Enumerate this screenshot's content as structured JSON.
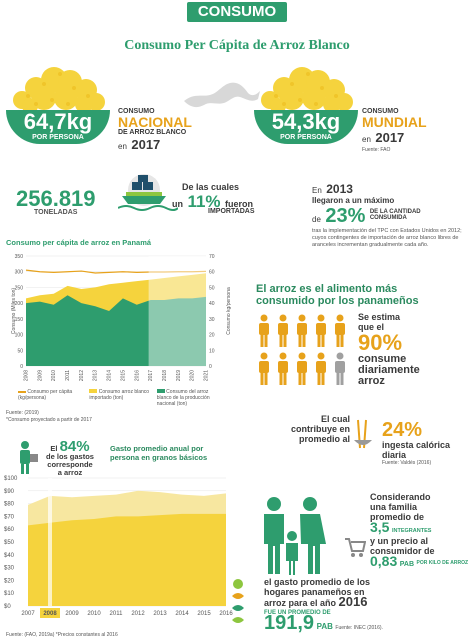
{
  "header": {
    "badge": "CONSUMO",
    "title": "Consumo Per Cápita de Arroz Blanco"
  },
  "national": {
    "value": "64,7kg",
    "sub": "POR PERSONA",
    "l1": "CONSUMO",
    "l2": "NACIONAL",
    "l3": "DE ARROZ BLANCO",
    "l4": "en",
    "year": "2017"
  },
  "world": {
    "value": "54,3kg",
    "sub": "POR PERSONA",
    "l1": "CONSUMO",
    "l2": "MUNDIAL",
    "l3": "en",
    "year": "2017",
    "source": "Fuente: FAO"
  },
  "imports": {
    "tons": "256.819",
    "tons_label": "TONELADAS",
    "t1": "De las cuales",
    "t2": "un",
    "pct": "11%",
    "t3": "fueron",
    "t4": "IMPORTADAS"
  },
  "max2013": {
    "l1": "En",
    "year": "2013",
    "l2": "llegaron a un máximo",
    "l3": "de",
    "pct": "23%",
    "l4": "DE LA CANTIDAD",
    "l5": "CONSUMIDA",
    "note": "tras la implementación del TPC con Estados Unidos en 2012; cuyos contingentes de importación de arroz blanco libres de aranceles incrementan gradualmente cada año."
  },
  "chart1": {
    "title": "Consumo per cápita de arroz en Panamá",
    "ylabel_left": "Consumo (Miles ton)",
    "ylabel_right": "Consumo kg/persona",
    "legend1": "Consumo per cápita (kg/persona)",
    "legend2": "Consumo arroz blanco importado (ton)",
    "legend3": "Consumo del arroz blanco de la producción nacional (ton)",
    "source": "Fuente: (2019)",
    "note": "*Consumo proyectado a partir de 2017"
  },
  "chart_data": [
    {
      "type": "area",
      "title": "Consumo per cápita de arroz en Panamá",
      "x": [
        "2008",
        "2009",
        "2010",
        "2011",
        "2012",
        "2013",
        "2014",
        "2015",
        "2016",
        "2017",
        "2018",
        "2019",
        "2020",
        "2021"
      ],
      "yticks_left": [
        "0",
        "50",
        "100",
        "150",
        "200",
        "250",
        "300",
        "350"
      ],
      "yticks_right": [
        "0",
        "10",
        "20",
        "30",
        "40",
        "50",
        "60",
        "70"
      ],
      "ylim_left": [
        0,
        350
      ],
      "series": [
        {
          "name": "Consumo del arroz blanco de la producción nacional (ton)",
          "values": [
            200,
            205,
            195,
            225,
            200,
            190,
            175,
            215,
            195,
            210,
            210,
            215,
            215,
            220
          ]
        },
        {
          "name": "Consumo arroz blanco importado (ton)",
          "values": [
            215,
            225,
            230,
            255,
            245,
            250,
            260,
            265,
            270,
            275,
            280,
            285,
            290,
            295
          ]
        },
        {
          "name": "Consumo per cápita (kg/persona)",
          "values": [
            305,
            300,
            298,
            300,
            302,
            296,
            298,
            300,
            298,
            299,
            299,
            300,
            300,
            301
          ]
        }
      ]
    },
    {
      "type": "area",
      "title": "Gasto promedio anual por persona en granos básicos",
      "x": [
        "2007",
        "2008",
        "2009",
        "2010",
        "2011",
        "2012",
        "2013",
        "2014",
        "2015",
        "2016"
      ],
      "yticks": [
        "$0",
        "$10",
        "$20",
        "$30",
        "$40",
        "$50",
        "$60",
        "$70",
        "$80",
        "$90",
        "$100"
      ],
      "ylim": [
        0,
        100
      ],
      "series": [
        {
          "name": "arroz",
          "values": [
            63,
            65,
            67,
            68,
            70,
            70,
            71,
            72,
            72,
            72
          ]
        },
        {
          "name": "granos básicos",
          "values": [
            79,
            86,
            85,
            86,
            87,
            90,
            89,
            87,
            86,
            88
          ]
        }
      ],
      "highlight": "2008"
    }
  ],
  "most": {
    "l1": "El arroz es el alimento más",
    "l2": "consumido por los panameños",
    "s1": "Se estima",
    "s2": "que el",
    "pct": "90%",
    "s3": "consume",
    "s4": "diariamente",
    "s5": "arroz"
  },
  "kcal": {
    "l1": "El cual",
    "l2": "contribuye en",
    "l3": "promedio al",
    "pct": "24%",
    "l4": "ingesta calórica",
    "l5": "diaria",
    "source": "Fuente: Valdés (2016)"
  },
  "spend": {
    "l1": "El",
    "pct": "84%",
    "l2": "de los gastos",
    "l3": "corresponde",
    "l4": "a arroz",
    "title": "Gasto promedio anual por persona en granos básicos",
    "source": "Fuente: (FAO, 2019a) *Precios constantes al 2016"
  },
  "family": {
    "l1": "Considerando",
    "l2": "una familia",
    "l3": "promedio de",
    "members": "3,5",
    "members_label": "INTEGRANTES",
    "l4": "y un precio al",
    "l5": "consumidor de",
    "price": "0,83",
    "price_unit": "PAB",
    "price_per": "POR KILO DE ARROZ",
    "l6": "el gasto promedio de los",
    "l7": "hogares panameños en",
    "l8": "arroz para el año",
    "year": "2016",
    "l9": "FUE UN PROMEDIO DE",
    "amount": "191,9",
    "amount_unit": "PAB",
    "source": "Fuente: INEC (2016)."
  },
  "colors": {
    "green": "#2e9d6e",
    "lightgreen": "#8dc63f",
    "orange": "#e7a21b",
    "yellow": "#f5d33d",
    "paleyellow": "#f7e7a0",
    "gray": "#a0a0a0"
  }
}
